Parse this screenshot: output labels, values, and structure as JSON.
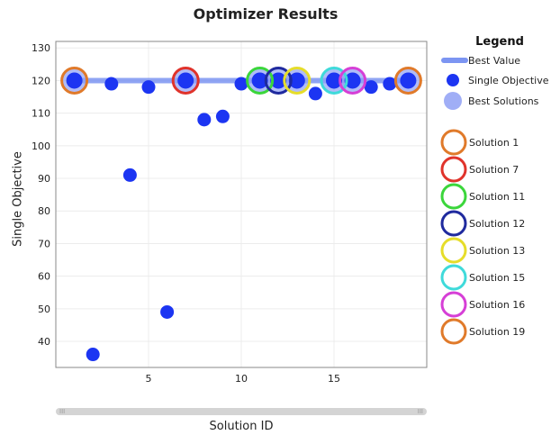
{
  "chart_data": {
    "type": "scatter",
    "title": "Optimizer Results",
    "xlabel": "Solution ID",
    "ylabel": "Single Objective",
    "xlim": [
      0,
      20
    ],
    "ylim": [
      32,
      132
    ],
    "xticks": [
      "5",
      "10",
      "15"
    ],
    "yticks": [
      "40",
      "50",
      "60",
      "70",
      "80",
      "90",
      "100",
      "110",
      "120",
      "130"
    ],
    "grid": true,
    "legend_position": "right",
    "legend": {
      "title": "Legend",
      "entries": [
        "Best Value",
        "Single Objective",
        "Best Solutions"
      ]
    },
    "best_value": {
      "name": "Best Value",
      "y": 120,
      "x_range": [
        1,
        19
      ],
      "color": "#7c95f2"
    },
    "series": [
      {
        "name": "Single Objective",
        "color": "#1c35f2",
        "x": [
          1,
          2,
          3,
          4,
          5,
          6,
          7,
          8,
          9,
          10,
          11,
          12,
          13,
          14,
          15,
          16,
          17,
          18,
          19
        ],
        "y": [
          120,
          36,
          119,
          91,
          118,
          49,
          120,
          108,
          109,
          119,
          120,
          120,
          120,
          116,
          120,
          120,
          118,
          119,
          120
        ]
      }
    ],
    "best_solutions": [
      {
        "id": 1,
        "label": "Solution 1",
        "color": "#e07a2a"
      },
      {
        "id": 7,
        "label": "Solution 7",
        "color": "#e0332b"
      },
      {
        "id": 11,
        "label": "Solution 11",
        "color": "#3bd63b"
      },
      {
        "id": 12,
        "label": "Solution 12",
        "color": "#1f2a9e"
      },
      {
        "id": 13,
        "label": "Solution 13",
        "color": "#e6dd2a"
      },
      {
        "id": 15,
        "label": "Solution 15",
        "color": "#3fdada"
      },
      {
        "id": 16,
        "label": "Solution 16",
        "color": "#d63fd6"
      },
      {
        "id": 19,
        "label": "Solution 19",
        "color": "#e07a2a"
      }
    ]
  },
  "scrollbar": {
    "left_grip": "III",
    "right_grip": "III"
  }
}
